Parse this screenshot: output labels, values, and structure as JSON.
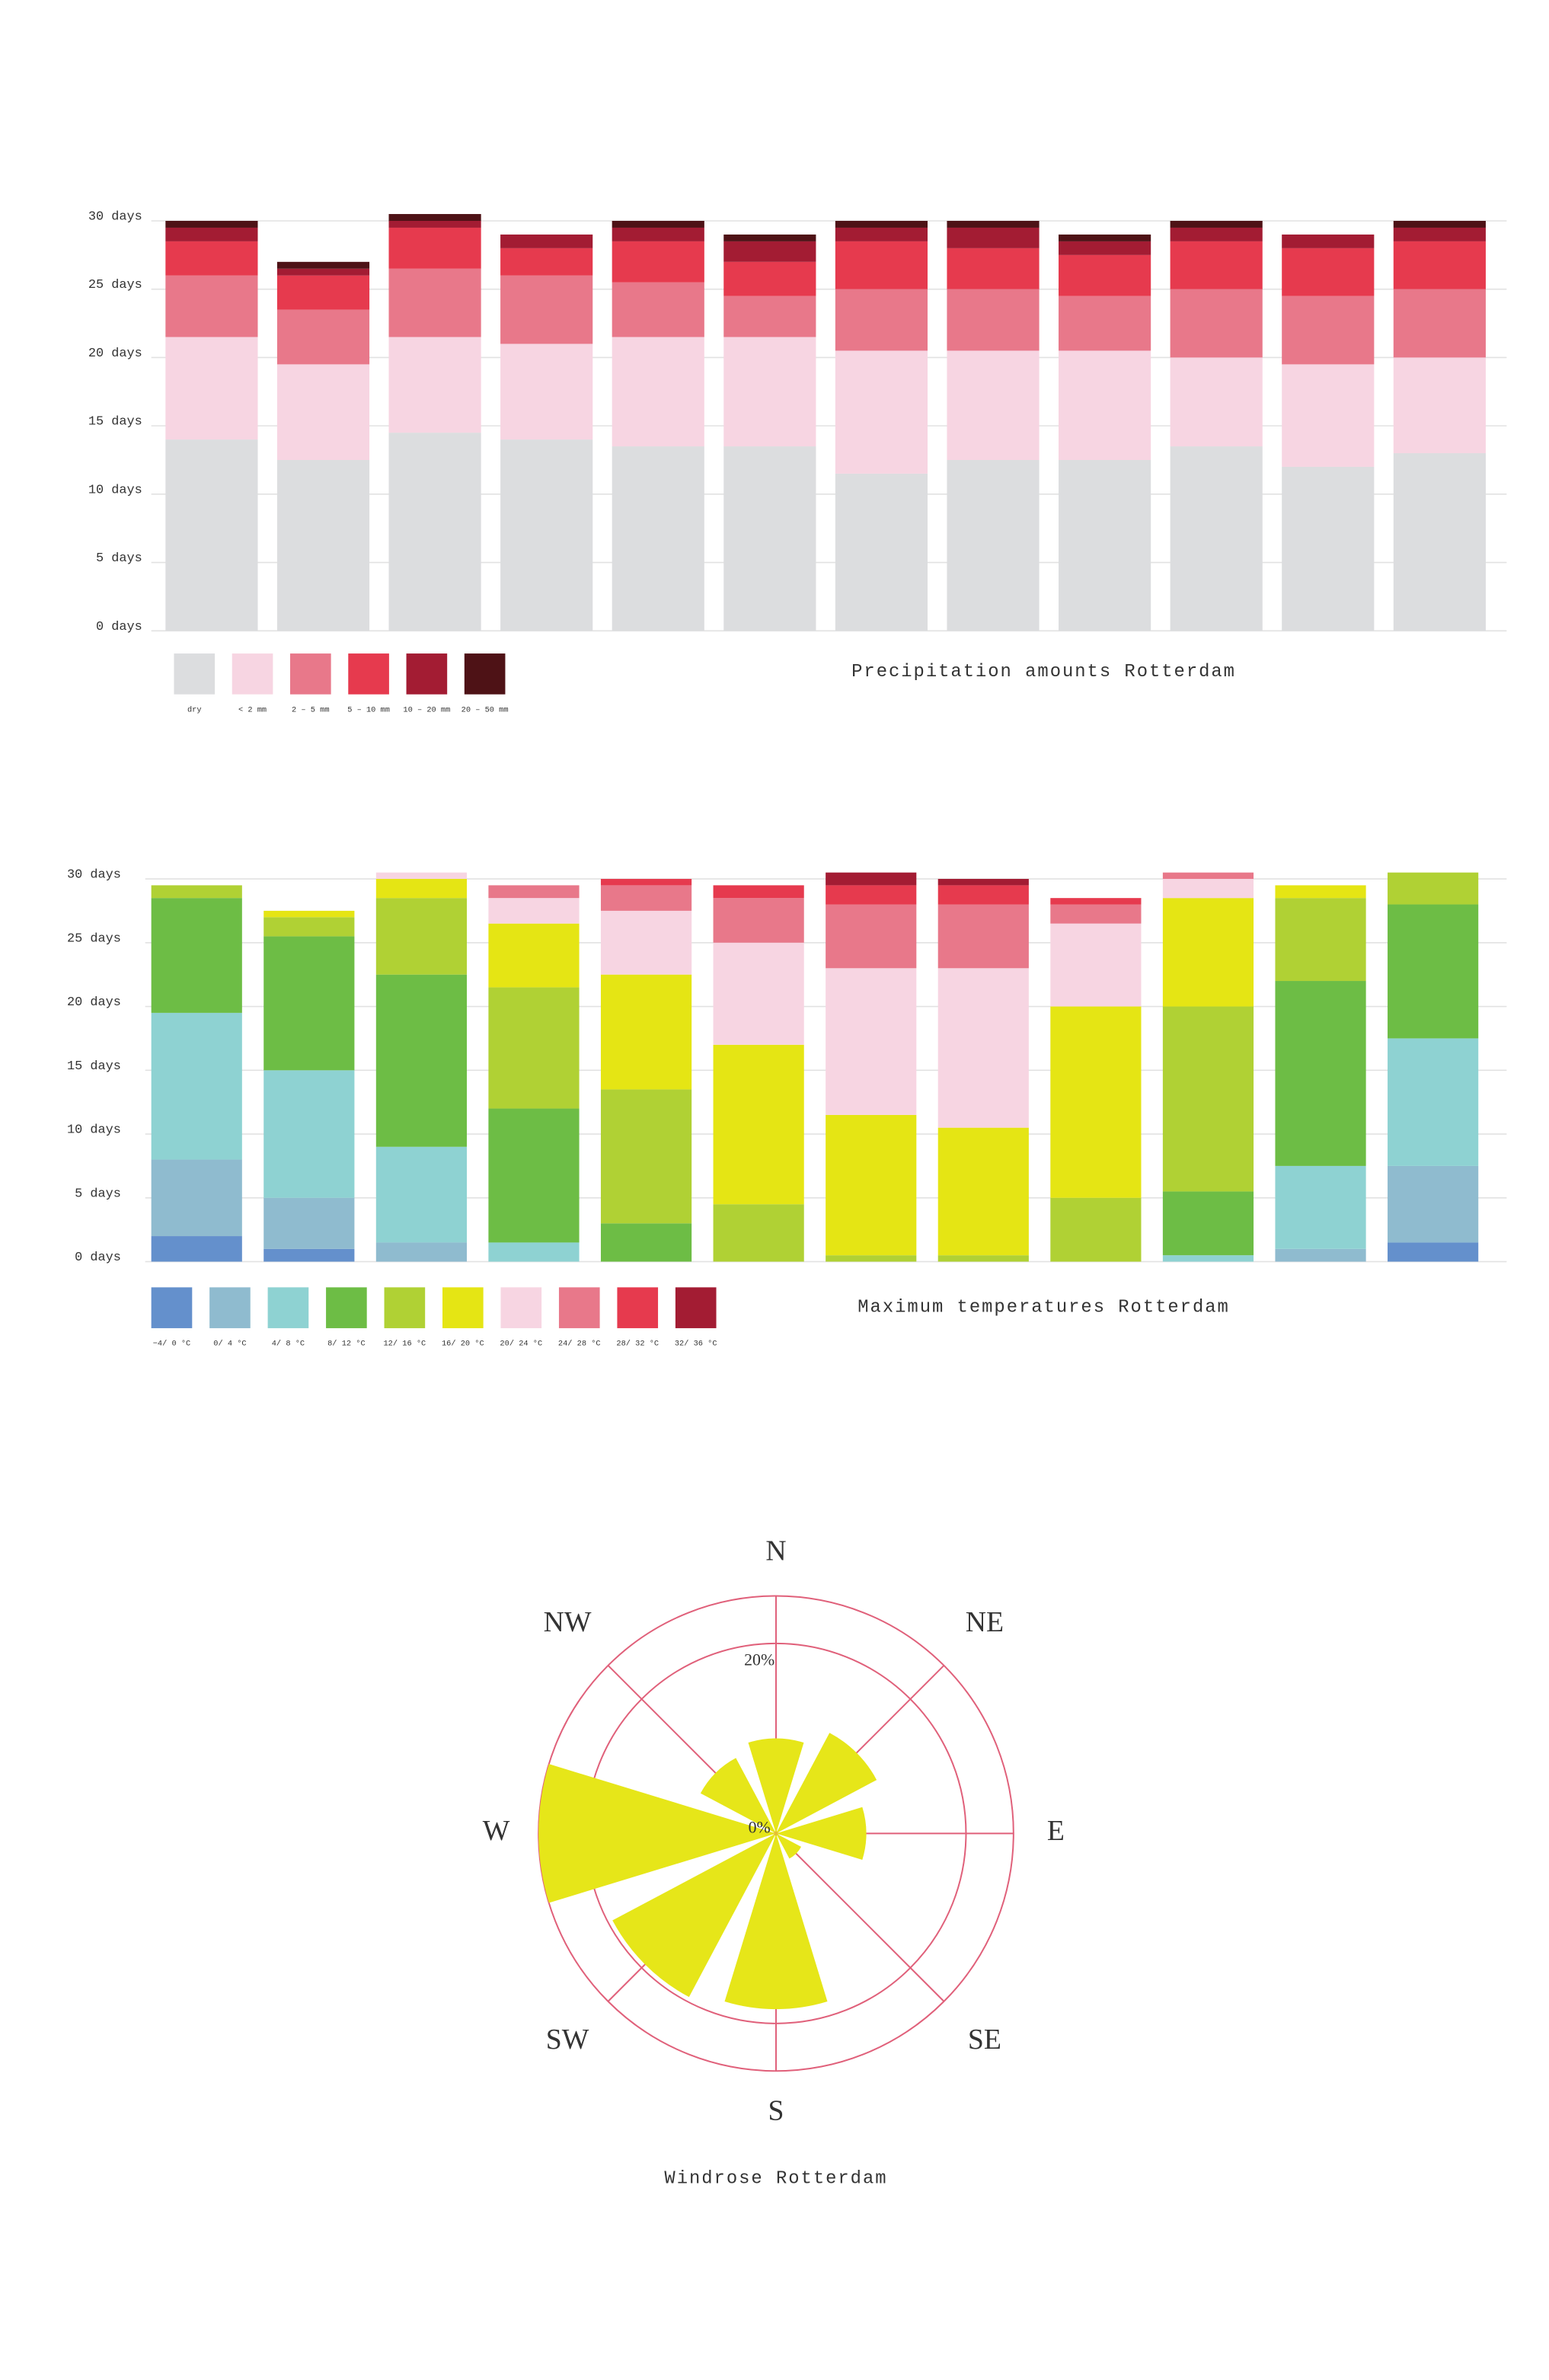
{
  "chart_data": [
    {
      "type": "stacked_bar",
      "title": "Precipitation amounts Rotterdam",
      "categories": [
        null,
        null,
        null,
        null,
        null,
        null,
        null,
        null,
        null,
        null,
        null,
        null
      ],
      "series": [
        {
          "name": "dry",
          "color": "#dcdddf",
          "values": [
            14,
            12.5,
            14.5,
            14,
            13.5,
            13.5,
            11.5,
            12.5,
            12.5,
            13.5,
            12,
            13
          ]
        },
        {
          "name": "< 2 mm",
          "color": "#f7d5e2",
          "values": [
            7.5,
            7,
            7,
            7,
            8,
            8,
            9,
            8,
            8,
            6.5,
            7.5,
            7
          ]
        },
        {
          "name": "2 – 5 mm",
          "color": "#e8788a",
          "values": [
            4.5,
            4,
            5,
            5,
            4,
            3,
            4.5,
            4.5,
            4,
            5,
            5,
            5
          ]
        },
        {
          "name": "5 – 10 mm",
          "color": "#e63a4e",
          "values": [
            2.5,
            2.5,
            3,
            2,
            3,
            2.5,
            3.5,
            3,
            3,
            3.5,
            3.5,
            3.5
          ]
        },
        {
          "name": "10 – 20 mm",
          "color": "#a31c33",
          "values": [
            1,
            0.5,
            0.5,
            1,
            1,
            1.5,
            1,
            1.5,
            1,
            1,
            1,
            1
          ]
        },
        {
          "name": "20 – 50 mm",
          "color": "#4e1216",
          "values": [
            0.5,
            0.5,
            0.5,
            0,
            0.5,
            0.5,
            0.5,
            0.5,
            0.5,
            0.5,
            0,
            0.5
          ]
        }
      ],
      "ylim": [
        0,
        30
      ],
      "yticks": [
        {
          "value": 0,
          "label": "0 days"
        },
        {
          "value": 5,
          "label": "5 days"
        },
        {
          "value": 10,
          "label": "10 days"
        },
        {
          "value": 15,
          "label": "15 days"
        },
        {
          "value": 20,
          "label": "20 days"
        },
        {
          "value": 25,
          "label": "25 days"
        },
        {
          "value": 30,
          "label": "30 days"
        }
      ],
      "grid": true
    },
    {
      "type": "stacked_bar",
      "title": "Maximum temperatures Rotterdam",
      "categories": [
        null,
        null,
        null,
        null,
        null,
        null,
        null,
        null,
        null,
        null,
        null,
        null
      ],
      "series": [
        {
          "name": "−4/ 0 °C",
          "color": "#6490cc",
          "values": [
            2,
            1,
            0,
            0,
            0,
            0,
            0,
            0,
            0,
            0,
            0,
            1.5
          ]
        },
        {
          "name": "0/ 4 °C",
          "color": "#8fbbcf",
          "values": [
            6,
            4,
            1.5,
            0,
            0,
            0,
            0,
            0,
            0,
            0,
            1,
            6
          ]
        },
        {
          "name": "4/ 8 °C",
          "color": "#8ed2d2",
          "values": [
            11.5,
            10,
            7.5,
            1.5,
            0,
            0,
            0,
            0,
            0,
            0.5,
            6.5,
            10
          ]
        },
        {
          "name": "8/ 12 °C",
          "color": "#6dbd45",
          "values": [
            9,
            10.5,
            13.5,
            10.5,
            3,
            0,
            0,
            0,
            0,
            5,
            14.5,
            10.5
          ]
        },
        {
          "name": "12/ 16 °C",
          "color": "#b0d134",
          "values": [
            1,
            1.5,
            6,
            9.5,
            10.5,
            4.5,
            0.5,
            0.5,
            5,
            14.5,
            6.5,
            2.5
          ]
        },
        {
          "name": "16/ 20 °C",
          "color": "#e5e514",
          "values": [
            0,
            0.5,
            1.5,
            5,
            9,
            12.5,
            11,
            10,
            15,
            8.5,
            1,
            0
          ]
        },
        {
          "name": "20/ 24 °C",
          "color": "#f7d5e2",
          "values": [
            0,
            0,
            0.5,
            2,
            5,
            8,
            11.5,
            12.5,
            6.5,
            1.5,
            0,
            0
          ]
        },
        {
          "name": "24/ 28 °C",
          "color": "#e8788a",
          "values": [
            0,
            0,
            0,
            1,
            2,
            3.5,
            5,
            5,
            1.5,
            0.5,
            0,
            0
          ]
        },
        {
          "name": "28/ 32 °C",
          "color": "#e63a4e",
          "values": [
            0,
            0,
            0,
            0,
            0.5,
            1,
            1.5,
            1.5,
            0.5,
            0,
            0,
            0
          ]
        },
        {
          "name": "32/ 36 °C",
          "color": "#a31c33",
          "values": [
            0,
            0,
            0,
            0,
            0,
            0,
            1,
            0.5,
            0,
            0,
            0,
            0
          ]
        }
      ],
      "ylim": [
        0,
        30
      ],
      "yticks": [
        {
          "value": 0,
          "label": "0 days"
        },
        {
          "value": 5,
          "label": "5 days"
        },
        {
          "value": 10,
          "label": "10 days"
        },
        {
          "value": 15,
          "label": "15 days"
        },
        {
          "value": 20,
          "label": "20 days"
        },
        {
          "value": 25,
          "label": "25 days"
        },
        {
          "value": 30,
          "label": "30 days"
        }
      ],
      "grid": true
    },
    {
      "type": "windrose",
      "title": "Windrose Rotterdam",
      "categories": [
        "N",
        "NE",
        "E",
        "SE",
        "S",
        "SW",
        "W",
        "NW"
      ],
      "values": [
        10,
        12,
        9.5,
        3,
        18.5,
        19.5,
        25,
        9
      ],
      "color": "#e6e619",
      "grid_color": "#e0607a",
      "rlim": [
        0,
        25
      ],
      "rticks": [
        {
          "value": 0,
          "label": "0%"
        },
        {
          "value": 20,
          "label": "20%"
        }
      ]
    }
  ]
}
